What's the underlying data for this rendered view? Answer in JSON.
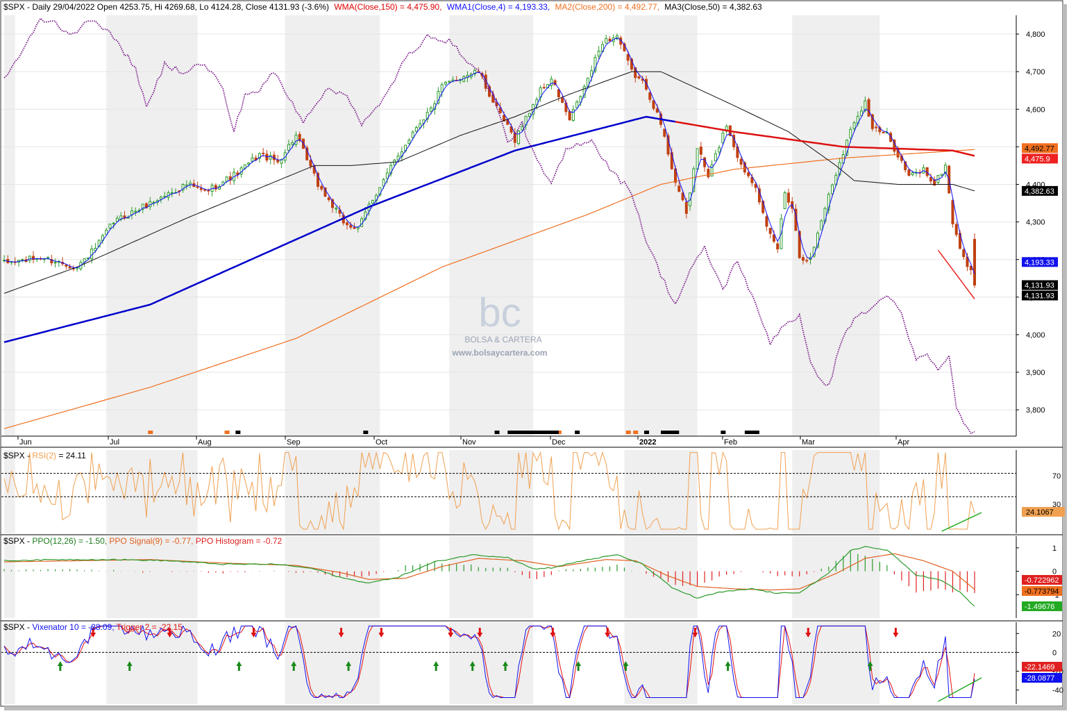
{
  "colors": {
    "wma150": "#0000cc",
    "wma4": "#1010ff",
    "ma200": "#f07020",
    "ma50": "#111111",
    "rsi": "#f0a050",
    "ppo": "#2a9a2a",
    "ppo_signal": "#e06020",
    "hist_pos": "#2a9a2a",
    "hist_neg": "#e02020",
    "vix": "#1010ee",
    "trigger": "#e01010",
    "up_candle": "#2a9a2a",
    "down_candle": "#c04010",
    "relative_line": "#7a1a8a",
    "shade": "#efefef"
  },
  "header": {
    "symbol": "$SPX - Daily 29/04/2022 Open 4253.75, Hi 4269.68, Lo 4124.28, Close 4131.93 (-3.6%)",
    "wma150": "WMA(Close,150) = 4,475.90,",
    "wma4": "WMA1(Close,4) = 4,193.33,",
    "ma200": "MA2(Close,200) = 4,492.77,",
    "ma50": "MA3(Close,50) = 4,382.63"
  },
  "watermark": {
    "logo": "bc",
    "name": "BOLSA & CARTERA",
    "url": "www.bolsaycartera.com"
  },
  "rsi_header": {
    "prefix": "$SPX - ",
    "name": "RSI(2)",
    "value": " = 24.11"
  },
  "ppo_header": {
    "prefix": "$SPX - ",
    "ppo": "PPO(12,26) = -1.50, ",
    "signal": "PPO Signal(9) = -0.77, ",
    "hist": "PPO Histogram = -0.72"
  },
  "vix_header": {
    "prefix": "$SPX - ",
    "vix": "Vixenator 10 = -28.09, ",
    "trigger": "Trigger 2 = -22.15"
  },
  "chart_data": [
    {
      "type": "candlestick",
      "title": "$SPX - Daily 29/04/2022",
      "x_ticks": [
        "Jun",
        "Jul",
        "Aug",
        "Sep",
        "Oct",
        "Nov",
        "Dec",
        "2022",
        "Feb",
        "Mar",
        "Apr"
      ],
      "y_ticks": [
        3800,
        3900,
        4000,
        4100,
        4200,
        4300,
        4400,
        4500,
        4600,
        4700,
        4800
      ],
      "ylim": [
        3730,
        4850
      ],
      "last_bar": {
        "date": "29/04/2022",
        "open": 4253.75,
        "high": 4269.68,
        "low": 4124.28,
        "close": 4131.93
      },
      "close_anchors": [
        [
          0,
          4190
        ],
        [
          10,
          4205
        ],
        [
          20,
          4180
        ],
        [
          25,
          4230
        ],
        [
          30,
          4300
        ],
        [
          40,
          4350
        ],
        [
          50,
          4400
        ],
        [
          55,
          4380
        ],
        [
          64,
          4430
        ],
        [
          70,
          4480
        ],
        [
          75,
          4460
        ],
        [
          80,
          4530
        ],
        [
          86,
          4400
        ],
        [
          93,
          4300
        ],
        [
          97,
          4280
        ],
        [
          100,
          4345
        ],
        [
          107,
          4460
        ],
        [
          113,
          4555
        ],
        [
          117,
          4600
        ],
        [
          120,
          4660
        ],
        [
          126,
          4690
        ],
        [
          130,
          4700
        ],
        [
          135,
          4600
        ],
        [
          140,
          4520
        ],
        [
          147,
          4650
        ],
        [
          150,
          4680
        ],
        [
          155,
          4570
        ],
        [
          160,
          4680
        ],
        [
          164,
          4780
        ],
        [
          168,
          4795
        ],
        [
          172,
          4700
        ],
        [
          176,
          4660
        ],
        [
          180,
          4560
        ],
        [
          184,
          4410
        ],
        [
          187,
          4320
        ],
        [
          190,
          4500
        ],
        [
          193,
          4420
        ],
        [
          198,
          4560
        ],
        [
          202,
          4450
        ],
        [
          206,
          4400
        ],
        [
          209,
          4280
        ],
        [
          212,
          4230
        ],
        [
          214,
          4380
        ],
        [
          216,
          4340
        ],
        [
          218,
          4210
        ],
        [
          221,
          4200
        ],
        [
          225,
          4340
        ],
        [
          229,
          4460
        ],
        [
          233,
          4570
        ],
        [
          236,
          4620
        ],
        [
          238,
          4550
        ],
        [
          242,
          4530
        ],
        [
          245,
          4480
        ],
        [
          248,
          4420
        ],
        [
          252,
          4440
        ],
        [
          255,
          4400
        ],
        [
          258,
          4450
        ],
        [
          260,
          4300
        ],
        [
          263,
          4200
        ],
        [
          265,
          4175
        ],
        [
          266,
          4131.93
        ]
      ],
      "series": [
        {
          "name": "WMA(Close,150)",
          "last": 4475.9,
          "label": "4,475.9",
          "anchors": [
            [
              0,
              3980
            ],
            [
              40,
              4080
            ],
            [
              100,
              4340
            ],
            [
              140,
              4490
            ],
            [
              176,
              4580
            ],
            [
              200,
              4540
            ],
            [
              230,
              4500
            ],
            [
              260,
              4490
            ],
            [
              266,
              4475.9
            ]
          ]
        },
        {
          "name": "WMA1(Close,4)",
          "last": 4193.33,
          "label": "4,193.33"
        },
        {
          "name": "MA2(Close,200)",
          "last": 4492.77,
          "label": "4,492.77",
          "anchors": [
            [
              0,
              3750
            ],
            [
              40,
              3860
            ],
            [
              80,
              3990
            ],
            [
              120,
              4180
            ],
            [
              160,
              4320
            ],
            [
              180,
              4400
            ],
            [
              200,
              4440
            ],
            [
              230,
              4470
            ],
            [
              266,
              4492.77
            ]
          ]
        },
        {
          "name": "MA3(Close,50)",
          "last": 4382.63,
          "label": "4,382.63",
          "anchors": [
            [
              0,
              4110
            ],
            [
              20,
              4180
            ],
            [
              50,
              4310
            ],
            [
              70,
              4390
            ],
            [
              85,
              4450
            ],
            [
              95,
              4450
            ],
            [
              108,
              4460
            ],
            [
              125,
              4530
            ],
            [
              140,
              4580
            ],
            [
              155,
              4640
            ],
            [
              172,
              4700
            ],
            [
              180,
              4700
            ],
            [
              200,
              4610
            ],
            [
              215,
              4540
            ],
            [
              228,
              4450
            ],
            [
              233,
              4410
            ],
            [
              245,
              4400
            ],
            [
              260,
              4400
            ],
            [
              266,
              4382.63
            ]
          ]
        },
        {
          "name": "Relative line",
          "anchors": [
            [
              0,
              4680
            ],
            [
              6,
              4770
            ],
            [
              10,
              4840
            ],
            [
              14,
              4830
            ],
            [
              18,
              4800
            ],
            [
              25,
              4840
            ],
            [
              30,
              4790
            ],
            [
              36,
              4710
            ],
            [
              39,
              4600
            ],
            [
              44,
              4720
            ],
            [
              49,
              4700
            ],
            [
              54,
              4720
            ],
            [
              57,
              4700
            ],
            [
              60,
              4650
            ],
            [
              63,
              4540
            ],
            [
              66,
              4640
            ],
            [
              70,
              4650
            ],
            [
              74,
              4700
            ],
            [
              78,
              4630
            ],
            [
              82,
              4570
            ],
            [
              88,
              4650
            ],
            [
              94,
              4640
            ],
            [
              98,
              4560
            ],
            [
              103,
              4610
            ],
            [
              106,
              4660
            ],
            [
              110,
              4740
            ],
            [
              114,
              4760
            ],
            [
              116,
              4800
            ],
            [
              122,
              4780
            ],
            [
              126,
              4740
            ],
            [
              130,
              4700
            ],
            [
              134,
              4640
            ],
            [
              138,
              4510
            ],
            [
              142,
              4560
            ],
            [
              146,
              4460
            ],
            [
              150,
              4400
            ],
            [
              154,
              4490
            ],
            [
              158,
              4510
            ],
            [
              161,
              4520
            ],
            [
              164,
              4470
            ],
            [
              168,
              4420
            ],
            [
              172,
              4380
            ],
            [
              176,
              4250
            ],
            [
              180,
              4160
            ],
            [
              184,
              4080
            ],
            [
              188,
              4170
            ],
            [
              192,
              4230
            ],
            [
              197,
              4120
            ],
            [
              201,
              4200
            ],
            [
              205,
              4100
            ],
            [
              210,
              3980
            ],
            [
              214,
              4030
            ],
            [
              218,
              4050
            ],
            [
              221,
              3920
            ],
            [
              226,
              3860
            ],
            [
              230,
              4000
            ],
            [
              234,
              4050
            ],
            [
              238,
              4070
            ],
            [
              242,
              4110
            ],
            [
              246,
              4050
            ],
            [
              250,
              3930
            ],
            [
              253,
              3950
            ],
            [
              256,
              3900
            ],
            [
              259,
              3950
            ],
            [
              261,
              3800
            ],
            [
              264,
              3750
            ],
            [
              266,
              3740
            ]
          ]
        }
      ],
      "markers_bottom": [
        {
          "x": 40,
          "color": "orange"
        },
        {
          "x": 61,
          "color": "orange"
        },
        {
          "x": 64,
          "color": "black"
        },
        {
          "x": 99,
          "color": "black"
        },
        {
          "x": 135,
          "color": "black"
        },
        {
          "x": 152,
          "color": "orange"
        },
        {
          "x": 157,
          "color": "black"
        },
        {
          "x": 171,
          "color": "orange"
        },
        {
          "x": 173,
          "color": "orange"
        },
        {
          "x": 176,
          "color": "black"
        },
        {
          "x": 197,
          "color": "black"
        }
      ]
    },
    {
      "type": "line",
      "title": "$SPX - RSI(2) = 24.11",
      "series": [
        {
          "name": "RSI(2)",
          "last": 24.1067,
          "label": "24.1067"
        }
      ],
      "y_ticks": [
        70,
        30
      ],
      "levels": [
        30,
        70
      ],
      "ylim": [
        0,
        100
      ]
    },
    {
      "type": "line",
      "title": "$SPX - PPO(12,26) = -1.50, PPO Signal(9) = -0.77, PPO Histogram = -0.72",
      "y_ticks": [
        1,
        0,
        -1
      ],
      "ylim": [
        -2,
        1.5
      ],
      "series": [
        {
          "name": "PPO(12,26)",
          "last": -1.49676,
          "label": "-1.49676",
          "anchors": [
            [
              0,
              0.45
            ],
            [
              15,
              0.5
            ],
            [
              30,
              0.5
            ],
            [
              45,
              0.45
            ],
            [
              60,
              0.3
            ],
            [
              75,
              0.3
            ],
            [
              85,
              0.1
            ],
            [
              93,
              -0.3
            ],
            [
              100,
              -0.5
            ],
            [
              108,
              -0.25
            ],
            [
              118,
              0.4
            ],
            [
              128,
              0.7
            ],
            [
              138,
              0.6
            ],
            [
              145,
              0.1
            ],
            [
              150,
              0.15
            ],
            [
              160,
              0.5
            ],
            [
              168,
              0.7
            ],
            [
              175,
              0.3
            ],
            [
              183,
              -0.7
            ],
            [
              190,
              -1.15
            ],
            [
              196,
              -0.9
            ],
            [
              205,
              -0.75
            ],
            [
              212,
              -0.95
            ],
            [
              218,
              -0.9
            ],
            [
              226,
              -0.1
            ],
            [
              232,
              0.9
            ],
            [
              236,
              1.05
            ],
            [
              242,
              0.9
            ],
            [
              250,
              -0.15
            ],
            [
              257,
              -0.4
            ],
            [
              262,
              -0.9
            ],
            [
              266,
              -1.49676
            ]
          ]
        },
        {
          "name": "PPO Signal(9)",
          "last": -0.773794,
          "label": "-0.773794",
          "anchors": [
            [
              0,
              0.4
            ],
            [
              20,
              0.45
            ],
            [
              40,
              0.5
            ],
            [
              60,
              0.35
            ],
            [
              80,
              0.25
            ],
            [
              92,
              -0.05
            ],
            [
              100,
              -0.35
            ],
            [
              110,
              -0.3
            ],
            [
              120,
              0.2
            ],
            [
              130,
              0.55
            ],
            [
              142,
              0.45
            ],
            [
              152,
              0.2
            ],
            [
              165,
              0.5
            ],
            [
              173,
              0.45
            ],
            [
              182,
              -0.2
            ],
            [
              190,
              -0.65
            ],
            [
              200,
              -0.75
            ],
            [
              210,
              -0.8
            ],
            [
              218,
              -0.75
            ],
            [
              228,
              -0.1
            ],
            [
              236,
              0.55
            ],
            [
              244,
              0.75
            ],
            [
              252,
              0.45
            ],
            [
              260,
              0.0
            ],
            [
              266,
              -0.773794
            ]
          ]
        },
        {
          "name": "PPO Histogram",
          "last": -0.722962,
          "label": "-0.722962"
        }
      ]
    },
    {
      "type": "line",
      "title": "$SPX - Vixenator 10 = -28.09, Trigger 2 = -22.15",
      "y_ticks": [
        20,
        0,
        -20,
        -40
      ],
      "ylim": [
        -55,
        32
      ],
      "series": [
        {
          "name": "Vixenator 10",
          "last": -28.0877,
          "label": "-28.0877"
        },
        {
          "name": "Trigger 2",
          "last": -22.1469,
          "label": "-22.1469"
        }
      ],
      "sell_arrows": [
        24,
        45,
        68,
        92,
        103,
        122,
        130,
        150,
        165,
        189,
        220,
        244
      ],
      "buy_arrows": [
        15,
        34,
        64,
        79,
        94,
        118,
        128,
        137,
        157,
        170,
        198,
        237
      ]
    }
  ]
}
